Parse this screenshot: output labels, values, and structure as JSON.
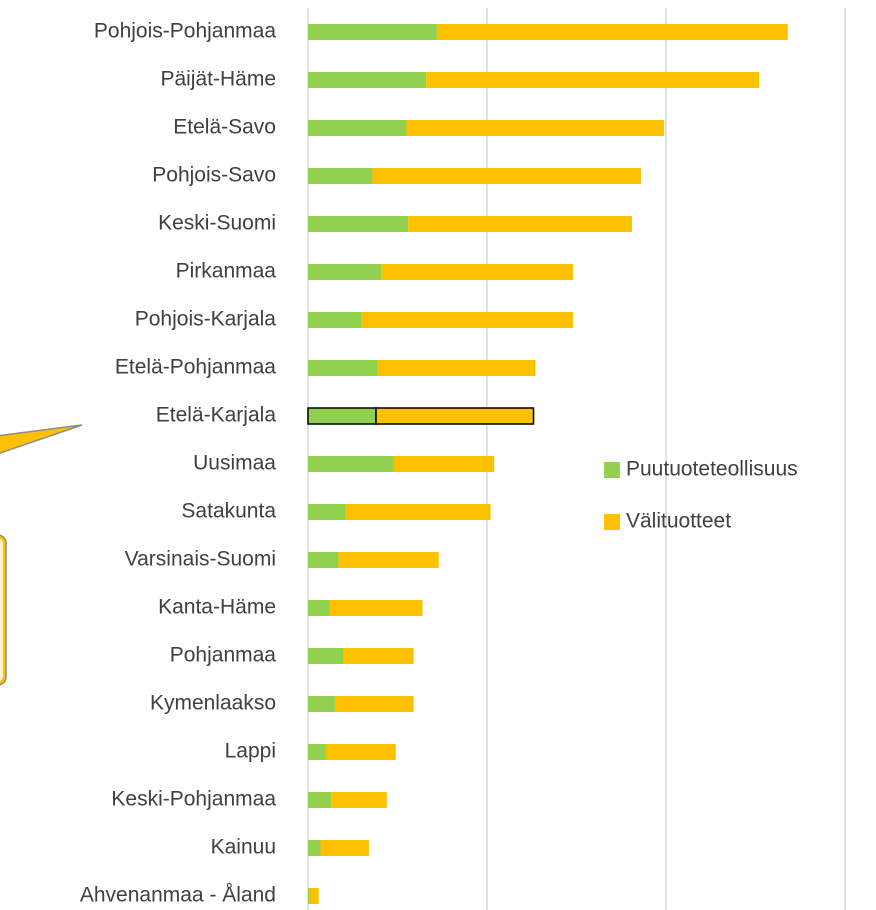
{
  "chart_data": {
    "type": "stacked_barh",
    "categories": [
      "Pohjois-Pohjanmaa",
      "Päijät-Häme",
      "Etelä-Savo",
      "Pohjois-Savo",
      "Keski-Suomi",
      "Pirkanmaa",
      "Pohjois-Karjala",
      "Etelä-Pohjanmaa",
      "Etelä-Karjala",
      "Uusimaa",
      "Satakunta",
      "Varsinais-Suomi",
      "Kanta-Häme",
      "Pohjanmaa",
      "Kymenlaakso",
      "Lappi",
      "Keski-Pohjanmaa",
      "Kainuu",
      "Ahvenanmaa - Åland"
    ],
    "series": [
      {
        "name": "Puutuoteteollisuus",
        "color": "#92d050",
        "values": [
          0.72,
          0.66,
          0.55,
          0.36,
          0.56,
          0.41,
          0.3,
          0.39,
          0.38,
          0.48,
          0.21,
          0.17,
          0.12,
          0.2,
          0.15,
          0.1,
          0.13,
          0.07,
          0.01
        ]
      },
      {
        "name": "Välituotteet",
        "color": "#ffc000",
        "values": [
          1.96,
          1.86,
          1.44,
          1.5,
          1.25,
          1.07,
          1.18,
          0.88,
          0.88,
          0.56,
          0.81,
          0.56,
          0.52,
          0.39,
          0.44,
          0.39,
          0.31,
          0.27,
          0.05
        ]
      }
    ],
    "xlim": [
      0,
      3.19
    ],
    "xticks": [
      0,
      1,
      2,
      3
    ],
    "grid": true,
    "highlight_index": 8
  }
}
